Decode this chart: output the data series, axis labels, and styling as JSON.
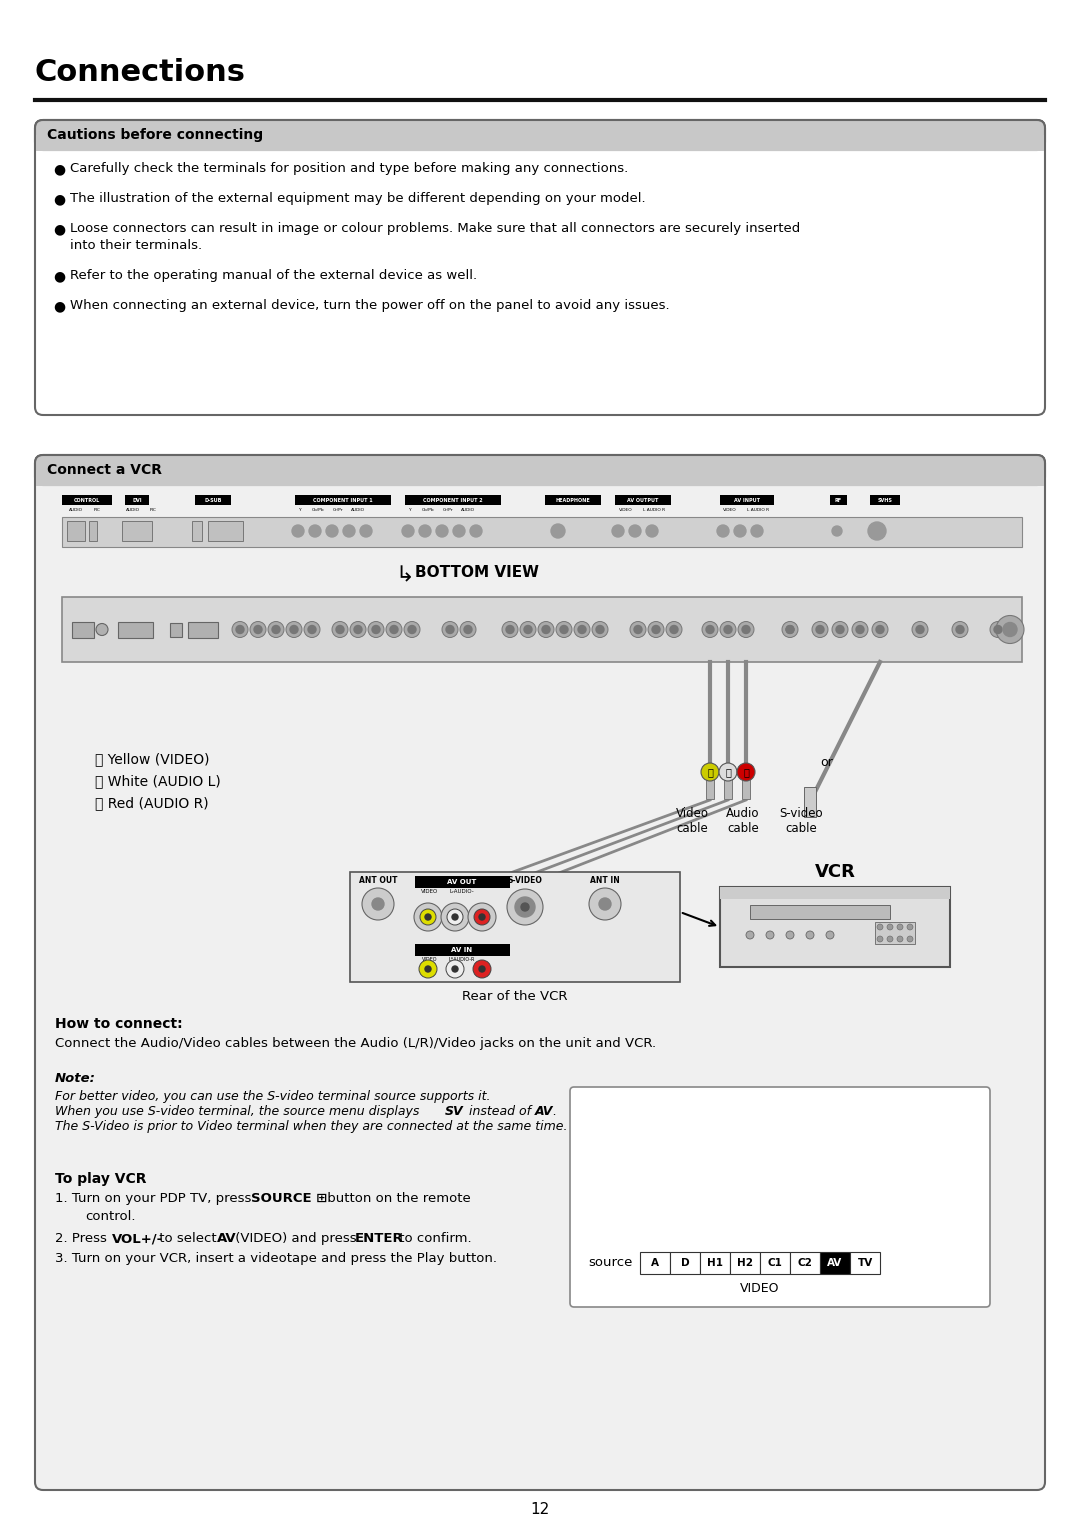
{
  "page_bg": "#ffffff",
  "title": "Connections",
  "page_number": "12",
  "cautions_items": [
    "Carefully check the terminals for position and type before making any connections.",
    "The illustration of the external equipment may be different depending on your model.",
    "Loose connectors can result in image or colour problems. Make sure that all connectors are securely inserted\ninto their terminals.",
    "Refer to the operating manual of the external device as well.",
    "When connecting an external device, turn the power off on the panel to avoid any issues."
  ],
  "how_to_connect_text": "Connect the Audio/Video cables between the Audio (L/R)/Video jacks on the unit and VCR.",
  "note_line1": "For better video, you can use the S-video terminal source supports it.",
  "note_line2": "When you use S-video terminal, the source menu displays ",
  "note_line2b": "SV",
  "note_line2c": " instead of ",
  "note_line2d": "AV",
  "note_line2e": ".",
  "note_line3": "The S-Video is prior to Video terminal when they are connected at the same time.",
  "source_items": [
    "A",
    "D",
    "H1",
    "H2",
    "C1",
    "C2",
    "AV",
    "TV"
  ],
  "source_highlight": "AV",
  "connector_labels": [
    "CONTROL",
    "DVI",
    "D-SUB",
    "COMPONENT INPUT 1",
    "COMPONENT INPUT 2",
    "HEADPHONE",
    "AV OUTPUT",
    "AV INPUT",
    "RF",
    "SVHS"
  ],
  "connector_sub": {
    "CONTROL": [
      "AUDIO",
      "PIC"
    ],
    "DVI": [
      "AUDIO",
      "PIC"
    ],
    "COMPONENT INPUT 1": [
      "Y",
      "Cb/Pb",
      "Cr/Pr",
      "AUDIO"
    ],
    "COMPONENT INPUT 2": [
      "Y",
      "Cb/Pb",
      "Cr/Pr",
      "AUDIO"
    ],
    "AV OUTPUT": [
      "VIDEO",
      "L AUDIO R"
    ],
    "AV INPUT": [
      "VIDEO",
      "L AUDIO R"
    ]
  }
}
